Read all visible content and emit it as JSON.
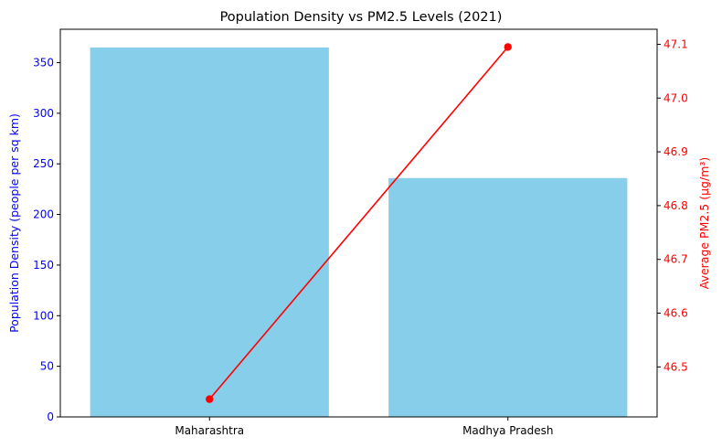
{
  "chart_data": {
    "type": "bar",
    "title": "Population Density vs PM2.5 Levels (2021)",
    "categories": [
      "Maharashtra",
      "Madhya Pradesh"
    ],
    "xlabel": "",
    "grid": false,
    "series": [
      {
        "kind": "bar",
        "axis": "left",
        "values": [
          365,
          236
        ],
        "color": "#87CEEB"
      },
      {
        "kind": "line",
        "axis": "right",
        "values": [
          46.44,
          47.095
        ],
        "color": "#FF0000",
        "marker": "circle"
      }
    ],
    "y_left": {
      "label": "Population Density (people per sq km)",
      "range": [
        0,
        383
      ],
      "ticks": [
        0,
        50,
        100,
        150,
        200,
        250,
        300,
        350
      ],
      "tick_labels": [
        "0",
        "50",
        "100",
        "150",
        "200",
        "250",
        "300",
        "350"
      ],
      "color": "#0000FF"
    },
    "y_right": {
      "label": "Average PM2.5 (µg/m³)",
      "range": [
        46.407,
        47.128
      ],
      "ticks": [
        46.5,
        46.6,
        46.7,
        46.8,
        46.9,
        47.0,
        47.1
      ],
      "tick_labels": [
        "46.5",
        "46.6",
        "46.7",
        "46.8",
        "46.9",
        "47.0",
        "47.1"
      ],
      "color": "#FF0000"
    }
  }
}
